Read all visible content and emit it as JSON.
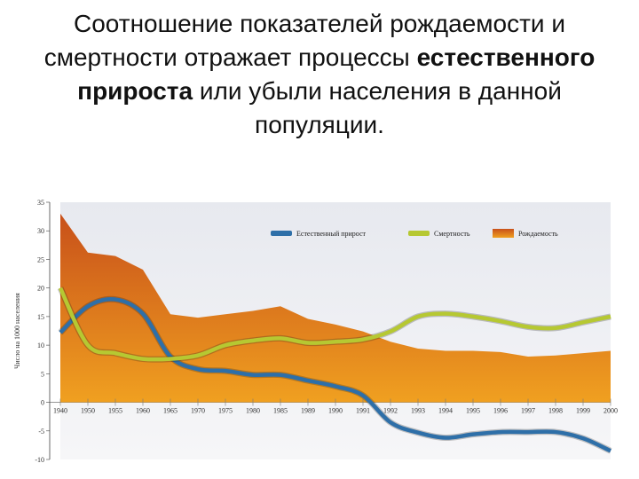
{
  "slide": {
    "title_part1": "Соотношение показателей рождаемости и смертности отражает процессы ",
    "title_bold": "естественного прироста",
    "title_part2": " или убыли населения в данной популяции."
  },
  "colors": {
    "birth_fill_top": "#c8501a",
    "birth_fill_bottom": "#f0a020",
    "plot_bg": "#eef0f4",
    "growth": "#2e6fa8",
    "death": "#b6c832"
  },
  "chart_data": {
    "type": "area",
    "ylabel": "Число на 1000 населения",
    "xlabel": "",
    "ylim": [
      -10,
      35
    ],
    "yticks": [
      "35",
      "30",
      "25",
      "20",
      "15",
      "10",
      "5",
      "0",
      "-5",
      "-10"
    ],
    "categories": [
      "1940",
      "1950",
      "1955",
      "1960",
      "1965",
      "1970",
      "1975",
      "1980",
      "1985",
      "1989",
      "1990",
      "1991",
      "1992",
      "1993",
      "1994",
      "1995",
      "1996",
      "1997",
      "1998",
      "1999",
      "2000"
    ],
    "legend_position": "top-right",
    "series": [
      {
        "name": "Естественный прирост",
        "style": "line",
        "values": [
          12.2,
          16.8,
          18.0,
          15.5,
          8.0,
          5.8,
          5.5,
          4.8,
          4.8,
          3.8,
          2.8,
          1.2,
          -3.5,
          -5.3,
          -6.2,
          -5.6,
          -5.2,
          -5.2,
          -5.2,
          -6.3,
          -8.5
        ]
      },
      {
        "name": "Смертность",
        "style": "line",
        "values": [
          20.0,
          10.0,
          8.6,
          7.6,
          7.6,
          8.2,
          10.0,
          10.8,
          11.2,
          10.4,
          10.6,
          11.0,
          12.4,
          15.0,
          15.5,
          15.0,
          14.2,
          13.2,
          13.0,
          14.0,
          15.0
        ]
      },
      {
        "name": "Рождаемость",
        "style": "area",
        "values": [
          33.0,
          26.2,
          25.6,
          23.2,
          15.4,
          14.8,
          15.4,
          16.0,
          16.8,
          14.6,
          13.6,
          12.4,
          10.6,
          9.4,
          9.0,
          9.0,
          8.8,
          8.0,
          8.2,
          8.6,
          9.0
        ]
      }
    ]
  }
}
